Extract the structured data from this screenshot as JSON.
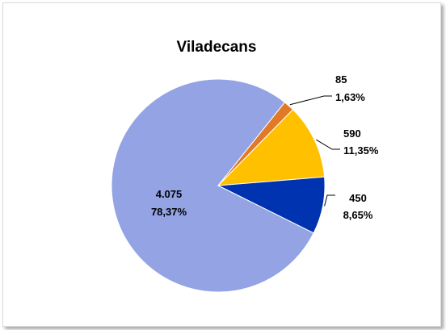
{
  "chart_data": {
    "type": "pie",
    "title": "Viladecans",
    "start_angle_deg": 38.6,
    "direction": "clockwise",
    "legend": "none",
    "slices": [
      {
        "value": 85,
        "value_label": "85",
        "percent_label": "1,63%",
        "color": "#E07A27"
      },
      {
        "value": 590,
        "value_label": "590",
        "percent_label": "11,35%",
        "color": "#FFC000"
      },
      {
        "value": 450,
        "value_label": "450",
        "percent_label": "8,65%",
        "color": "#0033B0"
      },
      {
        "value": 4075,
        "value_label": "4.075",
        "percent_label": "78,37%",
        "color": "#93A3E3"
      }
    ]
  }
}
